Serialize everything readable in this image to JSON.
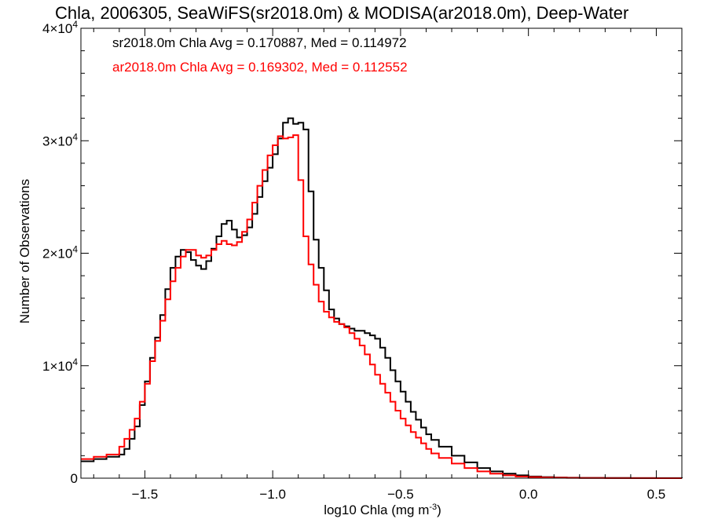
{
  "chart_data": {
    "type": "line",
    "step": true,
    "title": "Chla, 2006305, SeaWiFS(sr2018.0m) & MODISA(ar2018.0m), Deep-Water",
    "xlabel": "log10 Chla (mg m",
    "xlabel_sup": "-3",
    "xlabel_close": ")",
    "ylabel": "Number of Observations",
    "xlim": [
      -1.75,
      0.6
    ],
    "ylim": [
      0,
      40000
    ],
    "grid": false,
    "x_ticks": [
      {
        "value": -1.5,
        "label": "−1.5"
      },
      {
        "value": -1.0,
        "label": "−1.0"
      },
      {
        "value": -0.5,
        "label": "−0.5"
      },
      {
        "value": 0.0,
        "label": "0.0"
      },
      {
        "value": 0.5,
        "label": "0.5"
      }
    ],
    "y_ticks": [
      {
        "value": 0,
        "base": "0",
        "exp": ""
      },
      {
        "value": 10000,
        "base": "1×10",
        "exp": "4"
      },
      {
        "value": 20000,
        "base": "2×10",
        "exp": "4"
      },
      {
        "value": 30000,
        "base": "3×10",
        "exp": "4"
      },
      {
        "value": 40000,
        "base": "4×10",
        "exp": "4"
      }
    ],
    "annotations": [
      {
        "text": "sr2018.0m Chla Avg = 0.170887, Med = 0.114972",
        "color": "#000000"
      },
      {
        "text": "ar2018.0m Chla Avg = 0.169302, Med = 0.112552",
        "color": "#ff0000"
      }
    ],
    "series": [
      {
        "color": "#000000",
        "x": [
          -1.75,
          -1.7,
          -1.65,
          -1.6,
          -1.58,
          -1.56,
          -1.54,
          -1.52,
          -1.5,
          -1.48,
          -1.46,
          -1.44,
          -1.42,
          -1.4,
          -1.38,
          -1.36,
          -1.34,
          -1.32,
          -1.3,
          -1.28,
          -1.26,
          -1.24,
          -1.22,
          -1.2,
          -1.18,
          -1.16,
          -1.14,
          -1.12,
          -1.1,
          -1.08,
          -1.06,
          -1.04,
          -1.02,
          -1.0,
          -0.98,
          -0.96,
          -0.94,
          -0.92,
          -0.9,
          -0.88,
          -0.86,
          -0.84,
          -0.82,
          -0.8,
          -0.78,
          -0.76,
          -0.74,
          -0.72,
          -0.7,
          -0.68,
          -0.66,
          -0.64,
          -0.62,
          -0.6,
          -0.58,
          -0.56,
          -0.54,
          -0.52,
          -0.5,
          -0.48,
          -0.46,
          -0.44,
          -0.42,
          -0.4,
          -0.38,
          -0.35,
          -0.3,
          -0.25,
          -0.2,
          -0.15,
          -0.1,
          -0.05,
          0.0,
          0.05,
          0.1,
          0.15,
          0.2,
          0.3,
          0.4,
          0.5,
          0.6
        ],
        "y": [
          1500,
          1700,
          1900,
          2100,
          2600,
          3500,
          4600,
          6500,
          8600,
          10700,
          12500,
          14500,
          16800,
          18700,
          19700,
          20300,
          20100,
          19400,
          18900,
          18600,
          19300,
          20400,
          21500,
          22600,
          22900,
          22100,
          21400,
          21600,
          22300,
          23500,
          25000,
          26400,
          27600,
          28800,
          30200,
          31600,
          32000,
          31500,
          31600,
          31000,
          25500,
          21200,
          18700,
          16700,
          15000,
          14200,
          13700,
          13500,
          13300,
          13100,
          13100,
          12900,
          12700,
          12400,
          11600,
          10700,
          9600,
          8600,
          7700,
          6800,
          5900,
          5200,
          4500,
          3900,
          3400,
          2800,
          2000,
          1400,
          900,
          600,
          400,
          250,
          150,
          100,
          60,
          40,
          30,
          20,
          10,
          5,
          0
        ]
      },
      {
        "color": "#ff0000",
        "x": [
          -1.75,
          -1.7,
          -1.65,
          -1.6,
          -1.58,
          -1.56,
          -1.54,
          -1.52,
          -1.5,
          -1.48,
          -1.46,
          -1.44,
          -1.42,
          -1.4,
          -1.38,
          -1.36,
          -1.34,
          -1.32,
          -1.3,
          -1.28,
          -1.26,
          -1.24,
          -1.22,
          -1.2,
          -1.18,
          -1.16,
          -1.14,
          -1.12,
          -1.1,
          -1.08,
          -1.06,
          -1.04,
          -1.02,
          -1.0,
          -0.98,
          -0.96,
          -0.94,
          -0.92,
          -0.9,
          -0.88,
          -0.86,
          -0.84,
          -0.82,
          -0.8,
          -0.78,
          -0.76,
          -0.74,
          -0.72,
          -0.7,
          -0.68,
          -0.66,
          -0.64,
          -0.62,
          -0.6,
          -0.58,
          -0.56,
          -0.54,
          -0.52,
          -0.5,
          -0.48,
          -0.46,
          -0.44,
          -0.42,
          -0.4,
          -0.38,
          -0.35,
          -0.3,
          -0.25,
          -0.2,
          -0.15,
          -0.1,
          -0.05,
          0.0,
          0.05,
          0.1,
          0.15,
          0.2,
          0.3,
          0.4,
          0.5,
          0.6
        ],
        "y": [
          1700,
          1900,
          2100,
          2800,
          3500,
          4300,
          5300,
          6800,
          8400,
          10400,
          12200,
          14000,
          15900,
          17500,
          18700,
          19700,
          20300,
          20300,
          19800,
          19600,
          19800,
          20300,
          20800,
          21100,
          20800,
          20700,
          21000,
          21900,
          23000,
          24500,
          26000,
          27400,
          28700,
          29600,
          30400,
          30200,
          30300,
          30500,
          26500,
          21500,
          19000,
          17200,
          15700,
          14800,
          14300,
          13900,
          13700,
          13400,
          12900,
          12400,
          11800,
          11000,
          10100,
          9200,
          8400,
          7600,
          6800,
          6000,
          5300,
          4700,
          4100,
          3600,
          3100,
          2600,
          2200,
          1800,
          1300,
          900,
          600,
          400,
          250,
          150,
          100,
          60,
          40,
          30,
          20,
          10,
          5,
          0,
          0
        ]
      }
    ]
  }
}
